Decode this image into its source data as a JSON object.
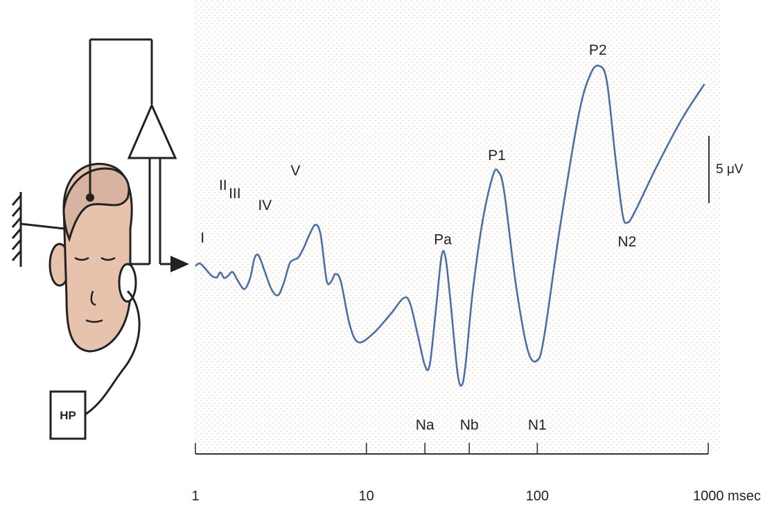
{
  "colors": {
    "waveform": "#4a6fa5",
    "stroke": "#222222",
    "text": "#222222",
    "skin": "#e7c3ad",
    "hair": "#d9b2a0",
    "background_dot": "#f2d9d2"
  },
  "equipment": {
    "headphone_label": "HP",
    "amplifier_icon": "triangle-amplifier-icon",
    "ground_icon": "ground-hatch-icon"
  },
  "scale_bar": {
    "label": "5 μV"
  },
  "chart_data": {
    "type": "line",
    "x_scale": "log",
    "xlim": [
      1,
      1000
    ],
    "x_ticks": [
      {
        "value": 1,
        "label": "1"
      },
      {
        "value": 10,
        "label": "10"
      },
      {
        "value": 100,
        "label": "100"
      },
      {
        "value": 1000,
        "label": "1000 msec"
      }
    ],
    "extra_ticks": [
      22,
      40
    ],
    "series": [
      {
        "points": [
          [
            1.0,
            -0.6
          ],
          [
            1.06,
            -0.35
          ],
          [
            1.14,
            -0.85
          ],
          [
            1.24,
            -1.55
          ],
          [
            1.33,
            -1.75
          ],
          [
            1.4,
            -1.25
          ],
          [
            1.47,
            -1.8
          ],
          [
            1.55,
            -1.6
          ],
          [
            1.65,
            -1.2
          ],
          [
            1.76,
            -2.0
          ],
          [
            1.93,
            -2.9
          ],
          [
            2.09,
            -1.8
          ],
          [
            2.22,
            0.2
          ],
          [
            2.35,
            0.4
          ],
          [
            2.55,
            -1.2
          ],
          [
            2.8,
            -3.0
          ],
          [
            3.05,
            -3.5
          ],
          [
            3.3,
            -2.2
          ],
          [
            3.55,
            -0.4
          ],
          [
            3.75,
            0.0
          ],
          [
            4.0,
            0.25
          ],
          [
            4.3,
            1.2
          ],
          [
            4.7,
            2.7
          ],
          [
            5.05,
            3.5
          ],
          [
            5.4,
            2.5
          ],
          [
            5.85,
            -2.0
          ],
          [
            6.2,
            -2.2
          ],
          [
            6.6,
            -1.4
          ],
          [
            7.1,
            -2.2
          ],
          [
            8.0,
            -6.5
          ],
          [
            9.0,
            -8.2
          ],
          [
            11.0,
            -7.3
          ],
          [
            14.0,
            -5.3
          ],
          [
            16.5,
            -3.8
          ],
          [
            18.0,
            -4.3
          ],
          [
            20.0,
            -7.5
          ],
          [
            22.0,
            -10.5
          ],
          [
            23.5,
            -10.4
          ],
          [
            25.5,
            -5.0
          ],
          [
            27.5,
            0.3
          ],
          [
            29.0,
            0.3
          ],
          [
            31.0,
            -4.0
          ],
          [
            34.0,
            -11.0
          ],
          [
            36.0,
            -12.5
          ],
          [
            38.0,
            -10.5
          ],
          [
            42.0,
            -3.0
          ],
          [
            48.0,
            4.0
          ],
          [
            55.0,
            8.4
          ],
          [
            59.0,
            8.8
          ],
          [
            64.0,
            6.8
          ],
          [
            75.0,
            -2.5
          ],
          [
            88.0,
            -9.0
          ],
          [
            100.0,
            -10.0
          ],
          [
            110.0,
            -7.5
          ],
          [
            135.0,
            3.0
          ],
          [
            175.0,
            14.5
          ],
          [
            205.0,
            18.5
          ],
          [
            230.0,
            19.3
          ],
          [
            255.0,
            17.8
          ],
          [
            285.0,
            10.5
          ],
          [
            315.0,
            4.6
          ],
          [
            335.0,
            3.7
          ],
          [
            370.0,
            4.7
          ],
          [
            500.0,
            9.3
          ],
          [
            700.0,
            14.0
          ],
          [
            950.0,
            17.5
          ]
        ]
      }
    ],
    "peaks": [
      {
        "label": "I",
        "x": 1.1
      },
      {
        "label": "II",
        "x": 1.45
      },
      {
        "label": "III",
        "x": 1.7
      },
      {
        "label": "IV",
        "x": 2.55
      },
      {
        "label": "V",
        "x": 3.85
      },
      {
        "label": "Pa",
        "x": 28.0
      },
      {
        "label": "P1",
        "x": 58.0
      },
      {
        "label": "P2",
        "x": 226.0
      },
      {
        "label": "Na",
        "x": 22.0
      },
      {
        "label": "Nb",
        "x": 40.0
      },
      {
        "label": "N1",
        "x": 100.0
      },
      {
        "label": "N2",
        "x": 335.0
      }
    ]
  }
}
